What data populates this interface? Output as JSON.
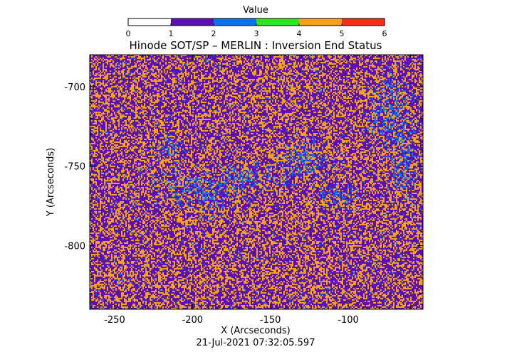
{
  "chart_data": {
    "type": "heatmap",
    "title": "Hinode SOT/SP – MERLIN : Inversion End Status",
    "xlabel": "X (Arcseconds)",
    "ylabel": "Y (Arcseconds)",
    "timestamp": "21-Jul-2021 07:32:05.597",
    "xlim": [
      -266,
      -52
    ],
    "ylim": [
      -840,
      -680
    ],
    "xticks": [
      {
        "value": -250,
        "label": "-250"
      },
      {
        "value": -200,
        "label": "-200"
      },
      {
        "value": -150,
        "label": "-150"
      },
      {
        "value": -100,
        "label": "-100"
      }
    ],
    "yticks": [
      {
        "value": -700,
        "label": "-700"
      },
      {
        "value": -750,
        "label": "-750"
      },
      {
        "value": -800,
        "label": "-800"
      }
    ],
    "colorbar": {
      "label": "Value",
      "range": [
        0,
        6
      ],
      "ticks": [
        "0",
        "1",
        "2",
        "3",
        "4",
        "5",
        "6"
      ],
      "colors": [
        "#ffffff",
        "#5a10b4",
        "#0a72f0",
        "#2ee620",
        "#f7a11a",
        "#f92d14"
      ]
    },
    "dominant_values": [
      {
        "value": 1,
        "share": 0.55
      },
      {
        "value": 4,
        "share": 0.38
      },
      {
        "value": 2,
        "share": 0.07
      }
    ]
  }
}
